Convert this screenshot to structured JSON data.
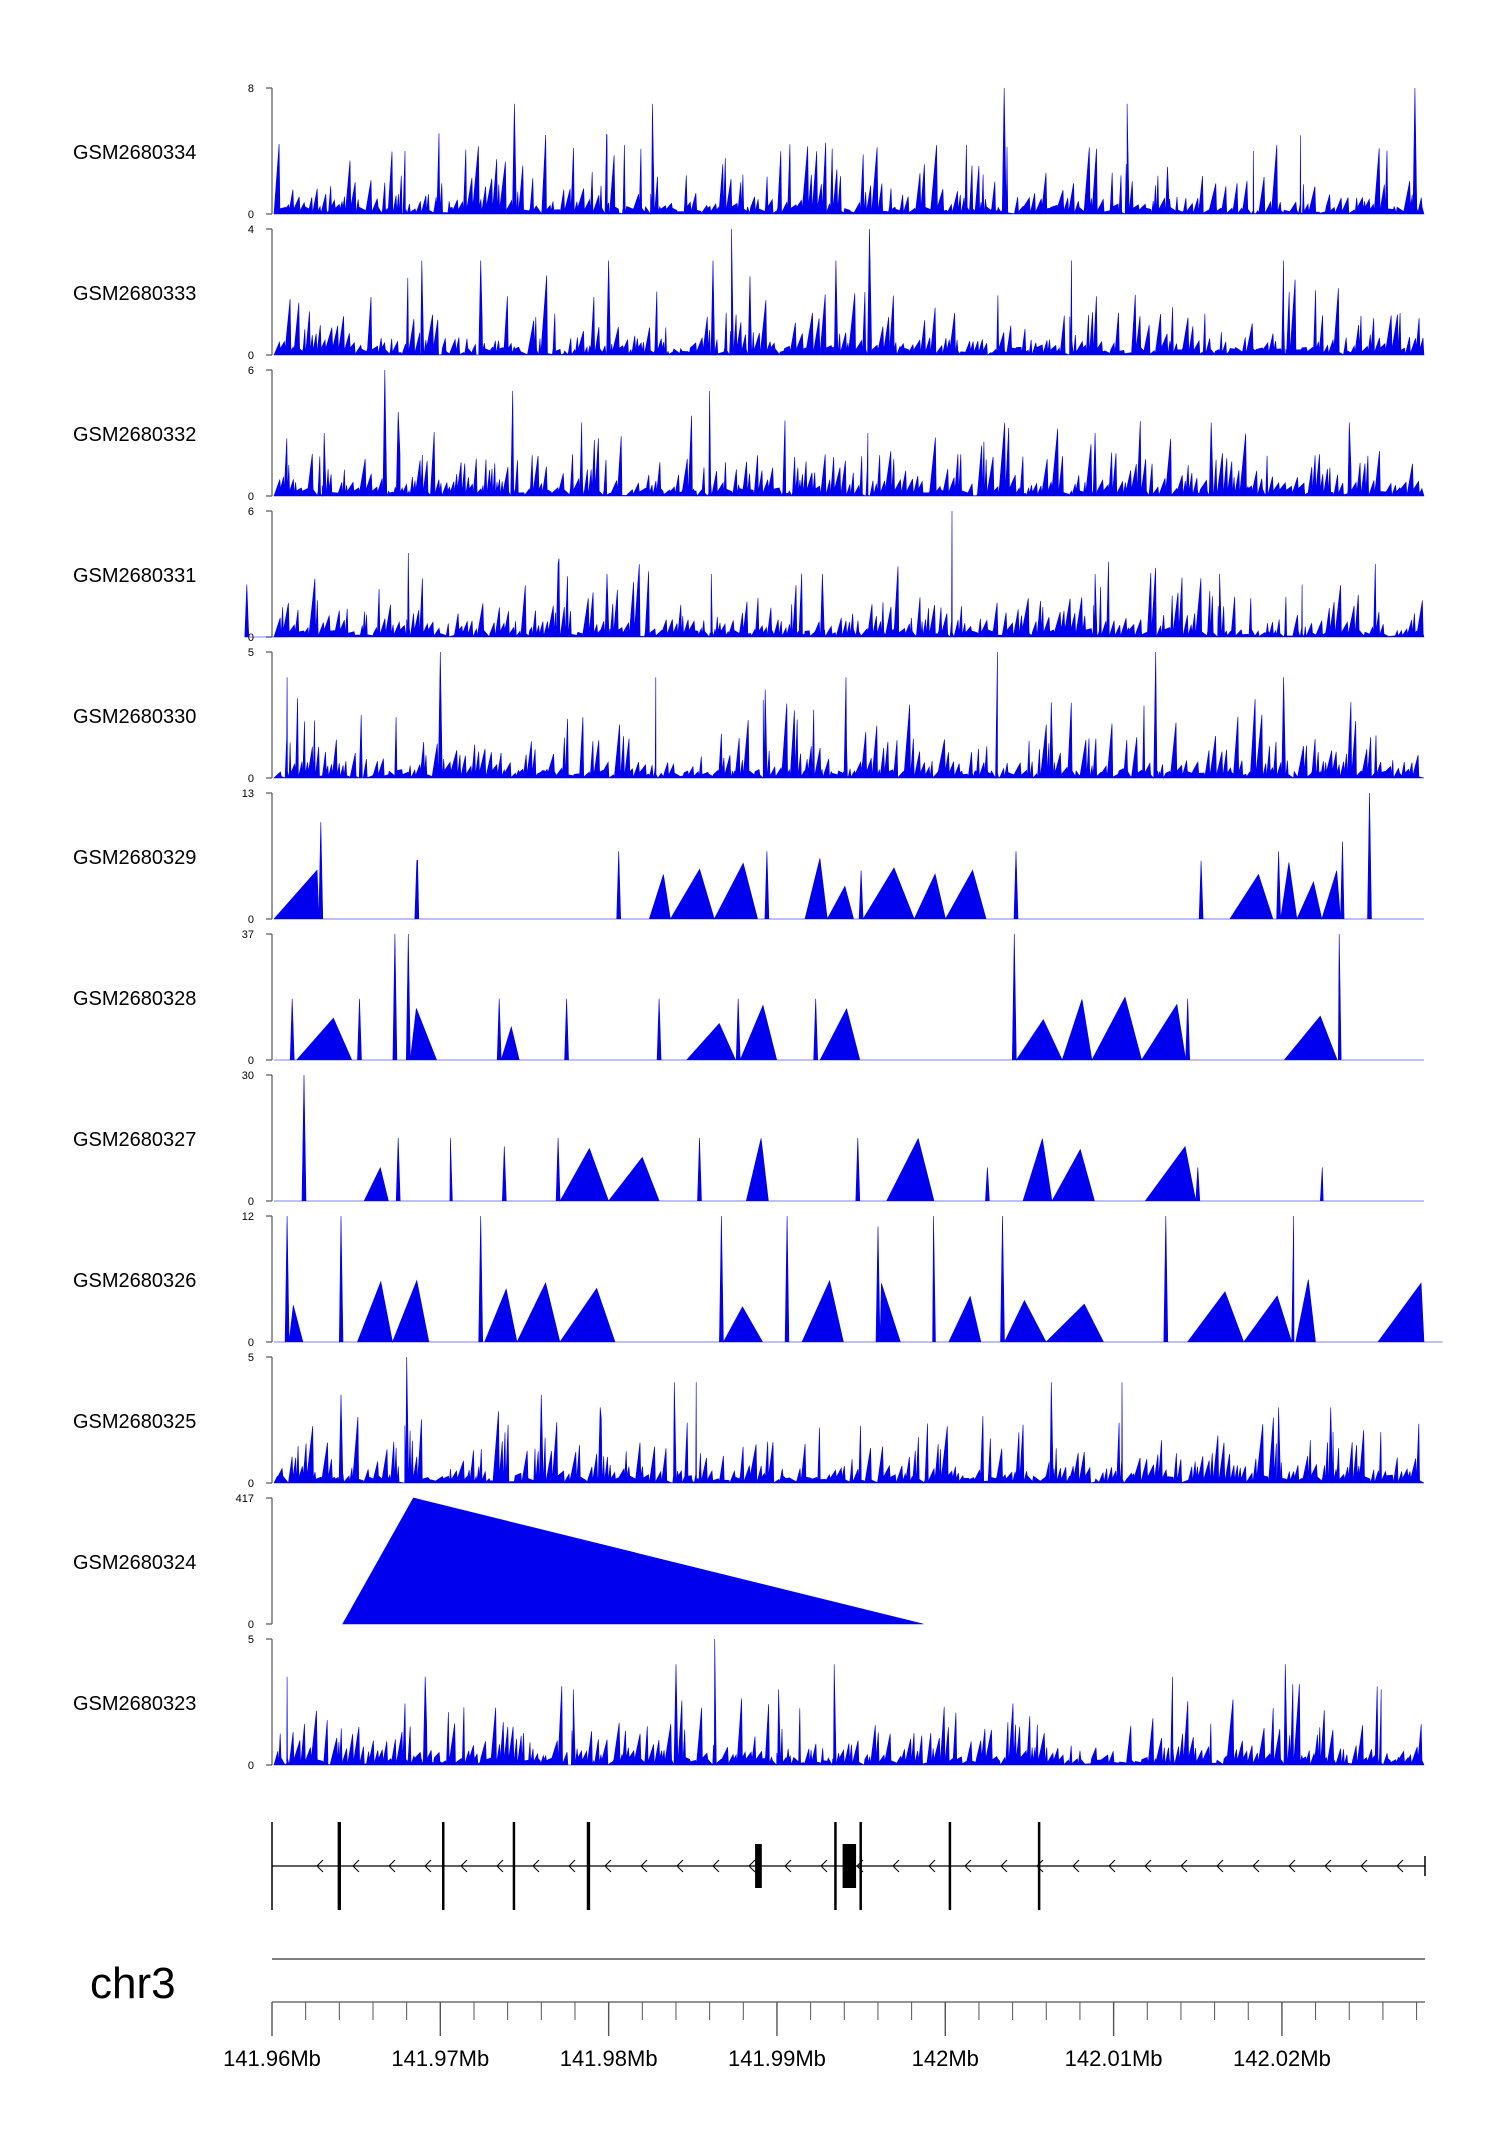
{
  "colors": {
    "signal": "#0000ee",
    "axis": "#555555",
    "gene": "#000000"
  },
  "chart_data": {
    "type": "area",
    "title": "",
    "tracks": [
      {
        "name": "GSM2680334",
        "ymax": 8,
        "peaks": [
          [
            141.9826,
            7
          ],
          [
            141.9799,
            5
          ],
          [
            141.9744,
            7
          ],
          [
            142.0035,
            8
          ],
          [
            142.0108,
            7
          ],
          [
            142.0211,
            5
          ],
          [
            142.0279,
            8
          ],
          [
            142.0183,
            4
          ],
          [
            141.9679,
            4
          ],
          [
            142.0132,
            3
          ]
        ]
      },
      {
        "name": "GSM2680333",
        "ymax": 4,
        "peaks": [
          [
            141.9873,
            4
          ],
          [
            141.9955,
            4
          ],
          [
            141.98,
            3
          ],
          [
            141.9862,
            3
          ],
          [
            141.9689,
            3
          ],
          [
            141.9724,
            3
          ],
          [
            142.0201,
            3
          ],
          [
            141.9935,
            3
          ],
          [
            141.9884,
            2.5
          ],
          [
            142.0075,
            3
          ]
        ]
      },
      {
        "name": "GSM2680332",
        "ymax": 6,
        "peaks": [
          [
            141.9667,
            6
          ],
          [
            141.9743,
            5
          ],
          [
            141.986,
            5
          ],
          [
            141.9675,
            4
          ],
          [
            141.9784,
            3.5
          ],
          [
            142.0158,
            3.5
          ],
          [
            142.024,
            3.5
          ],
          [
            141.9631,
            3
          ],
          [
            141.9954,
            3
          ],
          [
            142.0089,
            3
          ]
        ]
      },
      {
        "name": "GSM2680331",
        "ymax": 6,
        "peaks": [
          [
            142.0004,
            6
          ],
          [
            141.9681,
            4
          ],
          [
            141.977,
            3.5
          ],
          [
            141.9799,
            3
          ],
          [
            141.9861,
            3
          ],
          [
            141.9927,
            3
          ],
          [
            142.0089,
            3
          ],
          [
            142.0163,
            3
          ],
          [
            141.9585,
            2.5
          ],
          [
            142.0212,
            2.5
          ]
        ]
      },
      {
        "name": "GSM2680330",
        "ymax": 5,
        "peaks": [
          [
            141.97,
            5
          ],
          [
            142.0031,
            5
          ],
          [
            142.0125,
            5
          ],
          [
            141.9609,
            4
          ],
          [
            141.9828,
            4
          ],
          [
            141.9941,
            4
          ],
          [
            142.0201,
            4
          ],
          [
            141.9893,
            3.5
          ],
          [
            142.0063,
            3
          ],
          [
            141.9653,
            2.5
          ]
        ]
      },
      {
        "name": "GSM2680329",
        "ymax": 13,
        "peaks": [
          [
            142.0252,
            13
          ],
          [
            141.9629,
            10
          ],
          [
            142.0236,
            8
          ],
          [
            141.9806,
            7
          ],
          [
            142.0042,
            7
          ],
          [
            141.9686,
            6
          ],
          [
            141.9894,
            7
          ],
          [
            142.0152,
            6
          ],
          [
            142.0198,
            7
          ],
          [
            141.995,
            5
          ]
        ]
      },
      {
        "name": "GSM2680328",
        "ymax": 37,
        "peaks": [
          [
            141.9673,
            37
          ],
          [
            141.9681,
            37
          ],
          [
            142.0041,
            37
          ],
          [
            142.0234,
            37
          ],
          [
            141.9612,
            18
          ],
          [
            141.9652,
            18
          ],
          [
            141.9735,
            18
          ],
          [
            141.9775,
            18
          ],
          [
            141.983,
            18
          ],
          [
            141.9877,
            18
          ],
          [
            141.9923,
            18
          ],
          [
            142.0144,
            18
          ]
        ]
      },
      {
        "name": "GSM2680327",
        "ymax": 30,
        "peaks": [
          [
            141.9619,
            30
          ],
          [
            141.977,
            15
          ],
          [
            141.9854,
            15
          ],
          [
            141.9675,
            15
          ],
          [
            141.9706,
            15
          ],
          [
            141.9738,
            13
          ],
          [
            141.9948,
            15
          ],
          [
            142.0025,
            8
          ],
          [
            142.0224,
            8
          ],
          [
            142.015,
            8
          ]
        ]
      },
      {
        "name": "GSM2680326",
        "ymax": 12,
        "peaks": [
          [
            141.9609,
            12
          ],
          [
            141.9641,
            12
          ],
          [
            141.9724,
            12
          ],
          [
            141.9867,
            12
          ],
          [
            141.9906,
            12
          ],
          [
            141.9993,
            12
          ],
          [
            142.0034,
            12
          ],
          [
            142.0131,
            12
          ],
          [
            142.0207,
            12
          ],
          [
            141.996,
            11
          ]
        ]
      },
      {
        "name": "GSM2680325",
        "ymax": 5,
        "peaks": [
          [
            141.968,
            5
          ],
          [
            141.9839,
            4
          ],
          [
            141.9852,
            4
          ],
          [
            142.0063,
            4
          ],
          [
            142.0105,
            4
          ],
          [
            142.0198,
            3
          ],
          [
            141.9641,
            3.5
          ],
          [
            141.976,
            3.5
          ],
          [
            141.9795,
            3
          ],
          [
            142.0229,
            3
          ]
        ]
      },
      {
        "name": "GSM2680324",
        "ymax": 417,
        "peaks": [
          [
            141.9684,
            417
          ]
        ],
        "shape": [
          [
            141.9642,
            0
          ],
          [
            141.9684,
            417
          ],
          [
            141.9987,
            0
          ]
        ]
      },
      {
        "name": "GSM2680323",
        "ymax": 5,
        "peaks": [
          [
            141.9863,
            5
          ],
          [
            141.984,
            4
          ],
          [
            141.9934,
            4
          ],
          [
            142.0202,
            4
          ],
          [
            142.0135,
            3.5
          ],
          [
            141.9609,
            3.5
          ],
          [
            141.9691,
            3.5
          ],
          [
            141.9779,
            3
          ],
          [
            141.9901,
            3
          ],
          [
            142.0259,
            3
          ]
        ]
      }
    ],
    "gene_model": {
      "chrom": "chr3",
      "strand": "-",
      "exons": [
        [
          141.9639,
          141.9641
        ],
        [
          141.9701,
          141.9702
        ],
        [
          141.9743,
          141.9744
        ],
        [
          141.9787,
          141.9789
        ],
        [
          141.9887,
          141.9891
        ],
        [
          141.9934,
          141.9935
        ],
        [
          141.9939,
          141.9947
        ],
        [
          141.9949,
          141.995
        ],
        [
          142.0002,
          142.0003
        ],
        [
          142.0055,
          142.0056
        ]
      ],
      "start": 141.96,
      "end": 142.0285
    },
    "x_axis": {
      "range": [
        141.96,
        142.0285
      ],
      "tick_labels": [
        "141.96Mb",
        "141.97Mb",
        "141.98Mb",
        "141.99Mb",
        "142Mb",
        "142.01Mb",
        "142.02Mb"
      ],
      "tick_values": [
        141.96,
        141.97,
        141.98,
        141.99,
        142.0,
        142.01,
        142.02
      ],
      "minor_step": 0.002
    }
  }
}
